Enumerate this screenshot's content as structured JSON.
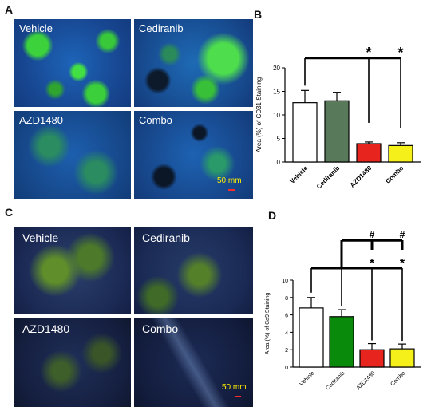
{
  "panels": {
    "a_letter": "A",
    "b_letter": "B",
    "c_letter": "C",
    "d_letter": "D"
  },
  "micro_a": {
    "vehicle": "Vehicle",
    "cediranib": "Cediranib",
    "azd1480": "AZD1480",
    "combo": "Combo",
    "scale_label": "50 mm"
  },
  "micro_c": {
    "vehicle": "Vehicle",
    "cediranib": "Cediranib",
    "azd1480": "AZD1480",
    "combo": "Combo",
    "scale_label": "50 mm"
  },
  "colors": {
    "vehicle": "#ffffff",
    "cediranib_b": "#587a5a",
    "cediranib_d": "#0a8a0a",
    "azd1480": "#e8241f",
    "combo": "#f6f01a"
  },
  "chart_data": [
    {
      "type": "bar",
      "panel": "B",
      "categories": [
        "Vehicle",
        "Cediranib",
        "AZD1480",
        "Combo"
      ],
      "values": [
        12.6,
        13.0,
        3.9,
        3.5
      ],
      "errors": [
        2.6,
        1.8,
        0.35,
        0.6
      ],
      "ylabel": "Area (%) of CD31 Staining",
      "xlabel": "",
      "ylim": [
        0,
        20
      ],
      "yticks": [
        "0",
        "5",
        "10",
        "15",
        "20"
      ],
      "annotations": [
        "*",
        "*"
      ]
    },
    {
      "type": "bar",
      "panel": "D",
      "categories": [
        "Vehicle",
        "Cediranib",
        "AZD1480",
        "Combo"
      ],
      "values": [
        6.8,
        5.8,
        2.0,
        2.1
      ],
      "errors": [
        1.2,
        0.8,
        0.7,
        0.55
      ],
      "ylabel": "Area (%) of Ca9 Staining",
      "xlabel": "",
      "ylim": [
        0,
        10
      ],
      "yticks": [
        "0",
        "2",
        "4",
        "6",
        "8",
        "10"
      ],
      "annotations": [
        "*",
        "*",
        "#",
        "#"
      ]
    }
  ]
}
